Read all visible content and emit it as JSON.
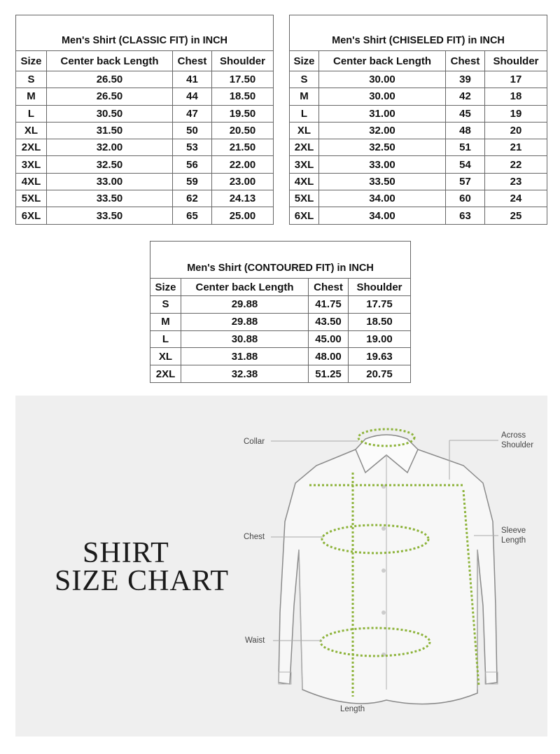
{
  "tables": [
    {
      "title": "Men's Shirt (CLASSIC FIT) in INCH",
      "headers": [
        "Size",
        "Center back Length",
        "Chest",
        "Shoulder"
      ],
      "rows": [
        [
          "S",
          "26.50",
          "41",
          "17.50"
        ],
        [
          "M",
          "26.50",
          "44",
          "18.50"
        ],
        [
          "L",
          "30.50",
          "47",
          "19.50"
        ],
        [
          "XL",
          "31.50",
          "50",
          "20.50"
        ],
        [
          "2XL",
          "32.00",
          "53",
          "21.50"
        ],
        [
          "3XL",
          "32.50",
          "56",
          "22.00"
        ],
        [
          "4XL",
          "33.00",
          "59",
          "23.00"
        ],
        [
          "5XL",
          "33.50",
          "62",
          "24.13"
        ],
        [
          "6XL",
          "33.50",
          "65",
          "25.00"
        ]
      ]
    },
    {
      "title": "Men's Shirt (CHISELED FIT) in INCH",
      "headers": [
        "Size",
        "Center back Length",
        "Chest",
        "Shoulder"
      ],
      "rows": [
        [
          "S",
          "30.00",
          "39",
          "17"
        ],
        [
          "M",
          "30.00",
          "42",
          "18"
        ],
        [
          "L",
          "31.00",
          "45",
          "19"
        ],
        [
          "XL",
          "32.00",
          "48",
          "20"
        ],
        [
          "2XL",
          "32.50",
          "51",
          "21"
        ],
        [
          "3XL",
          "33.00",
          "54",
          "22"
        ],
        [
          "4XL",
          "33.50",
          "57",
          "23"
        ],
        [
          "5XL",
          "34.00",
          "60",
          "24"
        ],
        [
          "6XL",
          "34.00",
          "63",
          "25"
        ]
      ]
    },
    {
      "title": "Men's Shirt (CONTOURED FIT) in INCH",
      "headers": [
        "Size",
        "Center back Length",
        "Chest",
        "Shoulder"
      ],
      "rows": [
        [
          "S",
          "29.88",
          "41.75",
          "17.75"
        ],
        [
          "M",
          "29.88",
          "43.50",
          "18.50"
        ],
        [
          "L",
          "30.88",
          "45.00",
          "19.00"
        ],
        [
          "XL",
          "31.88",
          "48.00",
          "19.63"
        ],
        [
          "2XL",
          "32.38",
          "51.25",
          "20.75"
        ]
      ]
    }
  ],
  "chart": {
    "heading_line1": "SHIRT",
    "heading_line2": "SIZE CHART",
    "labels": {
      "collar": "Collar",
      "across_shoulder_1": "Across",
      "across_shoulder_2": "Shoulder",
      "chest": "Chest",
      "sleeve_length_1": "Sleeve",
      "sleeve_length_2": "Length",
      "waist": "Waist",
      "length": "Length"
    },
    "colors": {
      "measure": "#8db33a",
      "background": "#efefef",
      "outline": "#8a8a8a"
    }
  }
}
